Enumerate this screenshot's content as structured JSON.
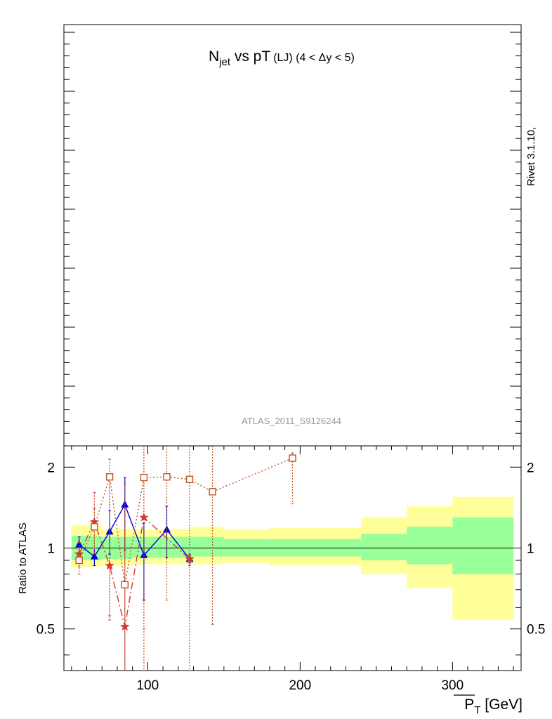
{
  "chart_data": [
    {
      "type": "line",
      "title_main": "N",
      "title_sub": "jet",
      "title_rest": " vs pT",
      "title_small": "(LJ) (4 < Δy < 5)",
      "watermark": "ATLAS_2011_S9126244",
      "side_label": "Rivet 3.1.10,",
      "grid": false,
      "legend": "none"
    },
    {
      "type": "line",
      "ylabel": "Ratio to ATLAS",
      "xlabel_main": "P",
      "xlabel_sub": "T",
      "xlabel_rest": " [GeV]",
      "y_scale": "log",
      "ylim": [
        0.35,
        2.4
      ],
      "xlim": [
        45,
        345
      ],
      "x_ticks": [
        100,
        200,
        300
      ],
      "y_ticks": [
        0.5,
        1,
        2
      ],
      "y_tick_labels": [
        "0.5",
        "1",
        "2"
      ],
      "bands": [
        {
          "x0": 50,
          "x1": 70,
          "yellow": [
            0.85,
            1.22
          ],
          "green": [
            0.9,
            1.11
          ]
        },
        {
          "x0": 70,
          "x1": 90,
          "yellow": [
            0.86,
            1.18
          ],
          "green": [
            0.91,
            1.1
          ]
        },
        {
          "x0": 90,
          "x1": 110,
          "yellow": [
            0.87,
            1.17
          ],
          "green": [
            0.92,
            1.1
          ]
        },
        {
          "x0": 110,
          "x1": 130,
          "yellow": [
            0.87,
            1.18
          ],
          "green": [
            0.92,
            1.1
          ]
        },
        {
          "x0": 130,
          "x1": 150,
          "yellow": [
            0.87,
            1.2
          ],
          "green": [
            0.93,
            1.1
          ]
        },
        {
          "x0": 150,
          "x1": 180,
          "yellow": [
            0.88,
            1.17
          ],
          "green": [
            0.93,
            1.08
          ]
        },
        {
          "x0": 180,
          "x1": 240,
          "yellow": [
            0.86,
            1.19
          ],
          "green": [
            0.93,
            1.08
          ]
        },
        {
          "x0": 240,
          "x1": 270,
          "yellow": [
            0.8,
            1.3
          ],
          "green": [
            0.9,
            1.13
          ]
        },
        {
          "x0": 270,
          "x1": 300,
          "yellow": [
            0.71,
            1.43
          ],
          "green": [
            0.87,
            1.2
          ]
        },
        {
          "x0": 300,
          "x1": 340,
          "yellow": [
            0.54,
            1.55
          ],
          "green": [
            0.8,
            1.3
          ]
        }
      ],
      "series": [
        {
          "color": "#0000dd",
          "marker": "triangle",
          "dash": "",
          "x": [
            55,
            65,
            75,
            85,
            97.5,
            112.5,
            127.5
          ],
          "y": [
            1.03,
            0.93,
            1.15,
            1.45,
            0.94,
            1.17,
            0.91
          ],
          "err_lo": [
            0.07,
            0.07,
            0.2,
            0.47,
            0.3,
            0.25,
            0.03
          ],
          "err_hi": [
            0.07,
            0.07,
            0.23,
            0.38,
            0.3,
            0.26,
            0.03
          ]
        },
        {
          "color": "#dd3333",
          "marker": "star",
          "dash": "10,4,2,4",
          "x": [
            55,
            65,
            75,
            85,
            97.5,
            127.5
          ],
          "y": [
            0.95,
            1.25,
            0.86,
            0.51,
            1.3,
            0.91
          ],
          "err_lo": [
            0.1,
            0.3,
            0.3,
            0.2,
            0.8,
            0.05
          ],
          "err_hi": [
            0.1,
            0.36,
            1.0,
            0.9,
            1.2,
            0.04
          ]
        },
        {
          "color": "#bb5522",
          "marker": "square",
          "dash": "2,3",
          "x": [
            55,
            65,
            75,
            85,
            97.5,
            112.5,
            127.5,
            142.5,
            195
          ],
          "y": [
            0.9,
            1.2,
            1.84,
            0.73,
            1.83,
            1.84,
            1.8,
            1.62,
            2.16
          ],
          "err_lo": [
            0.1,
            0.2,
            1.3,
            0.6,
            1.5,
            1.2,
            1.6,
            1.1,
            0.7
          ],
          "err_hi": [
            0.1,
            0.2,
            0.3,
            1.0,
            1.0,
            1.0,
            1.0,
            1.0,
            0.1
          ]
        }
      ]
    }
  ]
}
